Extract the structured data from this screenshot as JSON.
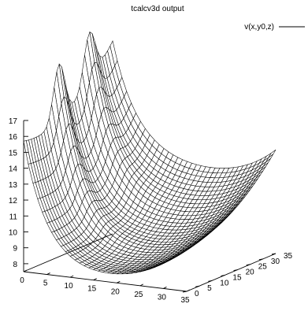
{
  "chart_data": {
    "type": "surface3d",
    "title": "tcalcv3d output",
    "series": [
      {
        "name": "v(x,y0,z)",
        "color": "#000000"
      }
    ],
    "legend_position": "top-right",
    "x_ticks": [
      "0",
      "5",
      "10",
      "15",
      "20",
      "25",
      "30",
      "35"
    ],
    "y_ticks": [
      "0",
      "5",
      "10",
      "15",
      "20",
      "25",
      "30",
      "35"
    ],
    "z_ticks": [
      "8",
      "9",
      "10",
      "11",
      "12",
      "13",
      "14",
      "15",
      "16",
      "17"
    ],
    "xlim": [
      0,
      35
    ],
    "ylim": [
      0,
      35
    ],
    "zlim": [
      7.5,
      17
    ],
    "grid_size": 35,
    "surface": {
      "description_values": {
        "corner_x0_y0": 15.8,
        "corner_x0_y35": 14.5,
        "corner_x35_y0": 10.5,
        "corner_x35_y35": 12.9,
        "peak_x0_y14": 17.4,
        "peak_x0_y26": 17.7,
        "minimum": 7.6
      }
    }
  }
}
